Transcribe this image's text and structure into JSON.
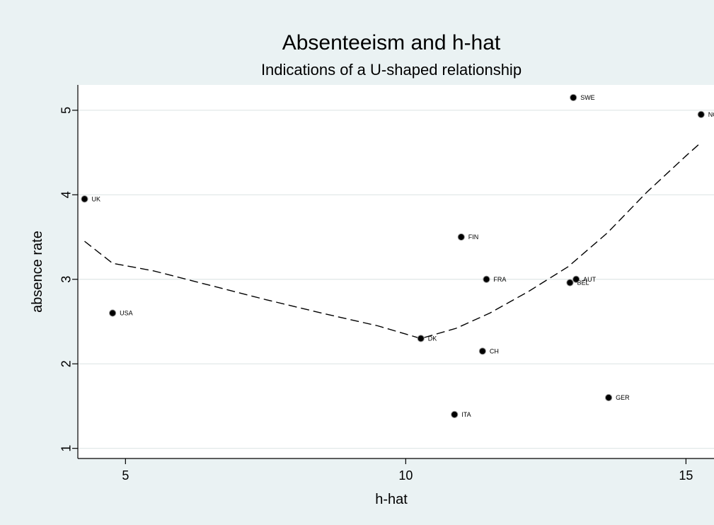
{
  "chart_data": {
    "type": "scatter",
    "title": "Absenteeism and h-hat",
    "subtitle": "Indications of a U-shaped relationship",
    "xlabel": "h-hat",
    "ylabel": "absence rate",
    "xlim": [
      4.15,
      15.5
    ],
    "ylim": [
      0.88,
      5.3
    ],
    "xticks": [
      5,
      10,
      15
    ],
    "yticks": [
      1,
      2,
      3,
      4,
      5
    ],
    "grid": true,
    "legend": "none",
    "colors": {
      "background": "#eaf2f3",
      "plot": "#ffffff",
      "marker": "#000000",
      "grid": "#dfe6e6"
    },
    "points": [
      {
        "label": "UK",
        "x": 4.27,
        "y": 3.95
      },
      {
        "label": "USA",
        "x": 4.77,
        "y": 2.6
      },
      {
        "label": "DK",
        "x": 10.27,
        "y": 2.3
      },
      {
        "label": "ITA",
        "x": 10.87,
        "y": 1.4
      },
      {
        "label": "FIN",
        "x": 10.99,
        "y": 3.5
      },
      {
        "label": "CH",
        "x": 11.37,
        "y": 2.15
      },
      {
        "label": "FRA",
        "x": 11.44,
        "y": 3.0
      },
      {
        "label": "BEL",
        "x": 12.93,
        "y": 2.96
      },
      {
        "label": "SWE",
        "x": 12.99,
        "y": 5.15
      },
      {
        "label": "AUT",
        "x": 13.04,
        "y": 3.0
      },
      {
        "label": "GER",
        "x": 13.62,
        "y": 1.6
      },
      {
        "label": "NOR",
        "x": 15.27,
        "y": 4.95
      }
    ],
    "fit_line": {
      "style": "dashed",
      "x": [
        4.27,
        4.77,
        5.5,
        6.5,
        7.5,
        8.5,
        9.5,
        10.27,
        10.9,
        11.5,
        12.2,
        12.9,
        13.6,
        14.3,
        15.0,
        15.27
      ],
      "y": [
        3.45,
        3.19,
        3.1,
        2.93,
        2.76,
        2.6,
        2.45,
        2.3,
        2.42,
        2.6,
        2.86,
        3.15,
        3.55,
        4.03,
        4.46,
        4.62
      ]
    }
  }
}
